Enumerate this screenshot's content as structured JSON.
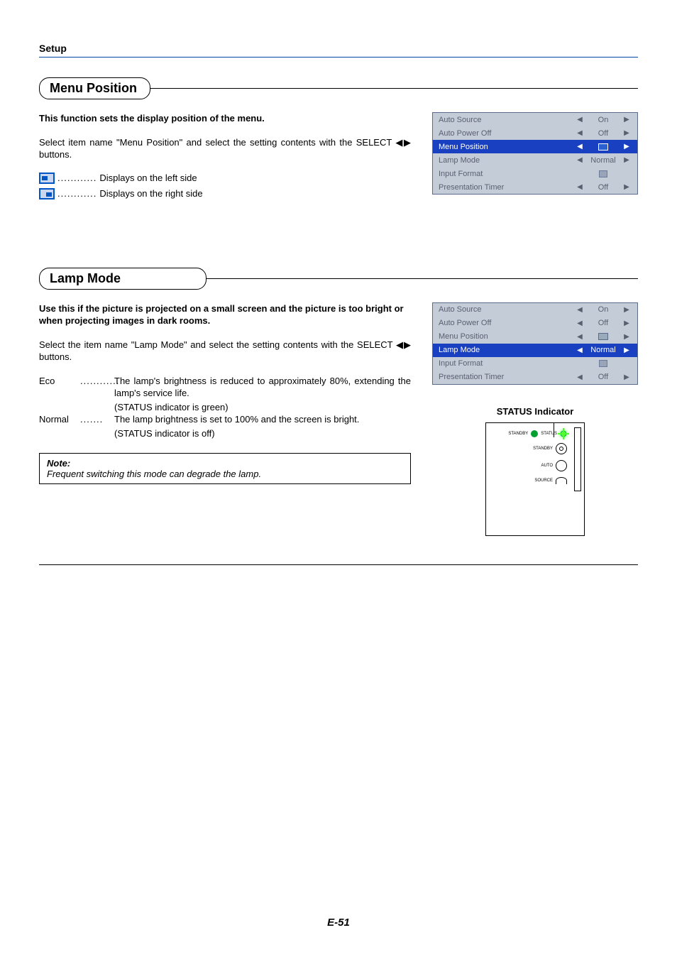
{
  "page": {
    "section_label": "Setup",
    "page_number": "E-51"
  },
  "menu_position": {
    "heading": "Menu Position",
    "bold_desc": "This function sets the display position of the menu.",
    "body": "Select item name \"Menu Position\" and select the setting contents with the SELECT ◀▶ buttons.",
    "left_label": "Displays on the left side",
    "right_label": "Displays on the right side",
    "dots": "............",
    "osd": {
      "rows": [
        {
          "label": "Auto Source",
          "value": "On",
          "selected": false,
          "arrows": true
        },
        {
          "label": "Auto Power Off",
          "value": "Off",
          "selected": false,
          "arrows": true
        },
        {
          "label": "Menu Position",
          "value": "",
          "selected": true,
          "arrows": true,
          "icon": "screen"
        },
        {
          "label": "Lamp Mode",
          "value": "Normal",
          "selected": false,
          "arrows": true
        },
        {
          "label": "Input Format",
          "value": "",
          "selected": false,
          "arrows": false,
          "icon": "enter"
        },
        {
          "label": "Presentation Timer",
          "value": "Off",
          "selected": false,
          "arrows": true
        }
      ]
    }
  },
  "lamp_mode": {
    "heading": "Lamp Mode",
    "bold_desc": "Use this if the picture is projected on a small screen and the picture is too bright or when projecting images in dark rooms.",
    "body": "Select the item name \"Lamp Mode\" and select the setting contents with the SELECT ◀▶ buttons.",
    "defs": [
      {
        "term": "Eco",
        "dots": "............",
        "lines": [
          "The lamp's brightness is reduced to approximately 80%, extending the lamp's service life.",
          "(STATUS indicator is green)"
        ]
      },
      {
        "term": "Normal",
        "dots": ".......",
        "lines": [
          "The lamp brightness is set to 100% and the screen is bright.",
          "(STATUS indicator is off)"
        ]
      }
    ],
    "note": {
      "title": "Note:",
      "body": "Frequent switching this mode can degrade the lamp."
    },
    "osd": {
      "rows": [
        {
          "label": "Auto Source",
          "value": "On",
          "selected": false,
          "arrows": true
        },
        {
          "label": "Auto Power Off",
          "value": "Off",
          "selected": false,
          "arrows": true
        },
        {
          "label": "Menu Position",
          "value": "",
          "selected": false,
          "arrows": true,
          "icon": "screen-dark"
        },
        {
          "label": "Lamp Mode",
          "value": "Normal",
          "selected": true,
          "arrows": true
        },
        {
          "label": "Input Format",
          "value": "",
          "selected": false,
          "arrows": false,
          "icon": "enter"
        },
        {
          "label": "Presentation Timer",
          "value": "Off",
          "selected": false,
          "arrows": true
        }
      ]
    },
    "status": {
      "title": "STATUS Indicator",
      "labels": {
        "standby": "STANDBY",
        "status": "STATUS",
        "auto": "AUTO",
        "source": "SOURCE"
      }
    }
  },
  "colors": {
    "rule_blue": "#0047a5",
    "osd_bg": "#c4ccd8",
    "osd_sel": "#1840c0",
    "led_green": "#00a030"
  }
}
